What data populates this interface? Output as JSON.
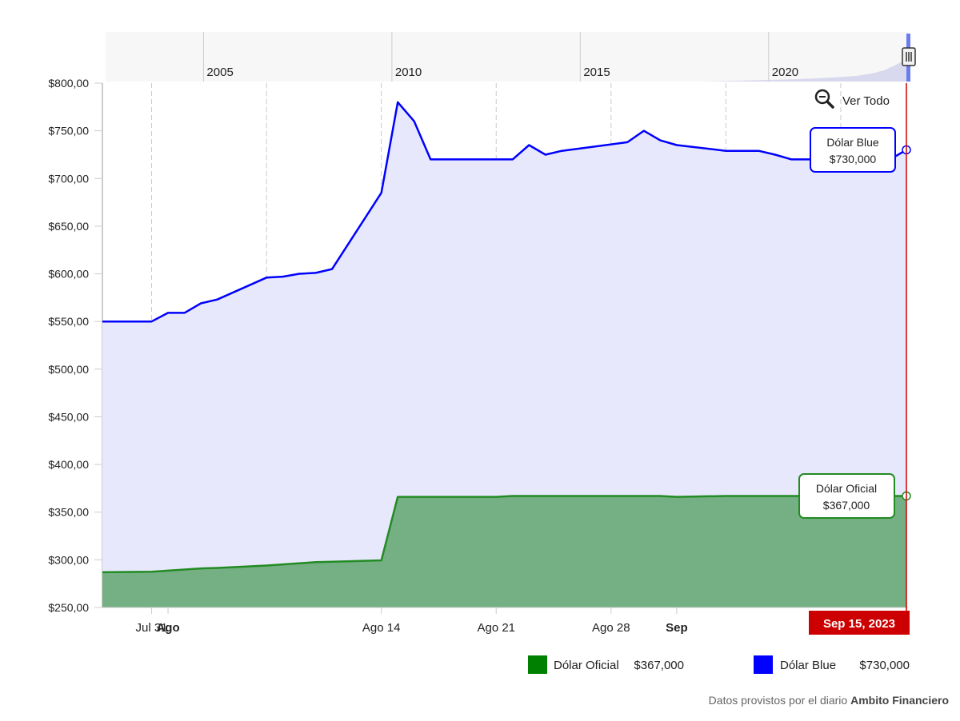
{
  "chart_data": {
    "type": "area",
    "y_axis": {
      "min": 250,
      "max": 800,
      "ticks": [
        800,
        750,
        700,
        650,
        600,
        550,
        500,
        450,
        400,
        350,
        300,
        250
      ],
      "tick_labels": [
        "$800,00",
        "$750,00",
        "$700,00",
        "$650,00",
        "$600,00",
        "$550,00",
        "$500,00",
        "$450,00",
        "$400,00",
        "$350,00",
        "$300,00",
        "$250,00"
      ]
    },
    "x_axis": {
      "range": [
        "2023-07-28",
        "2023-09-15"
      ],
      "ticks": [
        {
          "date": "2023-07-31",
          "label": "Jul 31",
          "bold": false
        },
        {
          "date": "2023-08-01",
          "label": "Ago",
          "bold": true
        },
        {
          "date": "2023-08-14",
          "label": "Ago 14",
          "bold": false
        },
        {
          "date": "2023-08-21",
          "label": "Ago 21",
          "bold": false
        },
        {
          "date": "2023-08-28",
          "label": "Ago 28",
          "bold": false
        },
        {
          "date": "2023-09-01",
          "label": "Sep",
          "bold": true
        }
      ],
      "gridline_dates": [
        "2023-07-31",
        "2023-08-07",
        "2023-08-14",
        "2023-08-21",
        "2023-08-28",
        "2023-09-04",
        "2023-09-11"
      ]
    },
    "series": [
      {
        "name": "Dólar Blue",
        "color": "#0000ff",
        "fill": "#e8e8fc",
        "points": [
          [
            "2023-07-28",
            550
          ],
          [
            "2023-07-31",
            550
          ],
          [
            "2023-08-01",
            559
          ],
          [
            "2023-08-02",
            559
          ],
          [
            "2023-08-03",
            569
          ],
          [
            "2023-08-04",
            573
          ],
          [
            "2023-08-07",
            596
          ],
          [
            "2023-08-08",
            597
          ],
          [
            "2023-08-09",
            600
          ],
          [
            "2023-08-10",
            601
          ],
          [
            "2023-08-11",
            605
          ],
          [
            "2023-08-14",
            685
          ],
          [
            "2023-08-15",
            780
          ],
          [
            "2023-08-16",
            760
          ],
          [
            "2023-08-17",
            720
          ],
          [
            "2023-08-18",
            720
          ],
          [
            "2023-08-22",
            720
          ],
          [
            "2023-08-23",
            735
          ],
          [
            "2023-08-24",
            725
          ],
          [
            "2023-08-25",
            729
          ],
          [
            "2023-08-29",
            738
          ],
          [
            "2023-08-30",
            750
          ],
          [
            "2023-08-31",
            740
          ],
          [
            "2023-09-01",
            735
          ],
          [
            "2023-09-04",
            729
          ],
          [
            "2023-09-05",
            729
          ],
          [
            "2023-09-06",
            729
          ],
          [
            "2023-09-07",
            725
          ],
          [
            "2023-09-08",
            720
          ],
          [
            "2023-09-11",
            720
          ],
          [
            "2023-09-12",
            710
          ],
          [
            "2023-09-13",
            713
          ],
          [
            "2023-09-14",
            720
          ],
          [
            "2023-09-15",
            730
          ]
        ]
      },
      {
        "name": "Dólar Oficial",
        "color": "#228b22",
        "fill": "#74b084",
        "points": [
          [
            "2023-07-28",
            287
          ],
          [
            "2023-07-31",
            287.5
          ],
          [
            "2023-08-03",
            291
          ],
          [
            "2023-08-04",
            291.5
          ],
          [
            "2023-08-07",
            294
          ],
          [
            "2023-08-10",
            297.5
          ],
          [
            "2023-08-11",
            298
          ],
          [
            "2023-08-14",
            299.5
          ],
          [
            "2023-08-15",
            366
          ],
          [
            "2023-08-21",
            366
          ],
          [
            "2023-08-22",
            367
          ],
          [
            "2023-08-31",
            367
          ],
          [
            "2023-09-01",
            366
          ],
          [
            "2023-09-04",
            367
          ],
          [
            "2023-09-15",
            367
          ]
        ]
      }
    ],
    "tooltips": [
      {
        "series": "Dólar Blue",
        "line1": "Dólar Blue",
        "line2": "$730,000",
        "color": "#0000ff"
      },
      {
        "series": "Dólar Oficial",
        "line1": "Dólar Oficial",
        "line2": "$367,000",
        "color": "#228b22"
      }
    ],
    "crosshair": {
      "date": "2023-09-15",
      "label": "Sep 15, 2023",
      "color": "#cc0000"
    },
    "legend": {
      "placement": "bottom-right",
      "items": [
        {
          "name": "Dólar Oficial",
          "value": "$367,000",
          "color": "#008000"
        },
        {
          "name": "Dólar Blue",
          "value": "$730,000",
          "color": "#0000ff"
        }
      ]
    },
    "navigator": {
      "year_labels": [
        "2005",
        "2010",
        "2015",
        "2020"
      ],
      "year_positions": [
        2005,
        2010,
        2015,
        2020
      ],
      "year_range": [
        2002.4,
        2023.7
      ]
    }
  },
  "ui": {
    "reset_zoom_label": "Ver Todo"
  },
  "footer": {
    "prefix": "Datos provistos por el diario ",
    "source": "Ambito Financiero"
  }
}
